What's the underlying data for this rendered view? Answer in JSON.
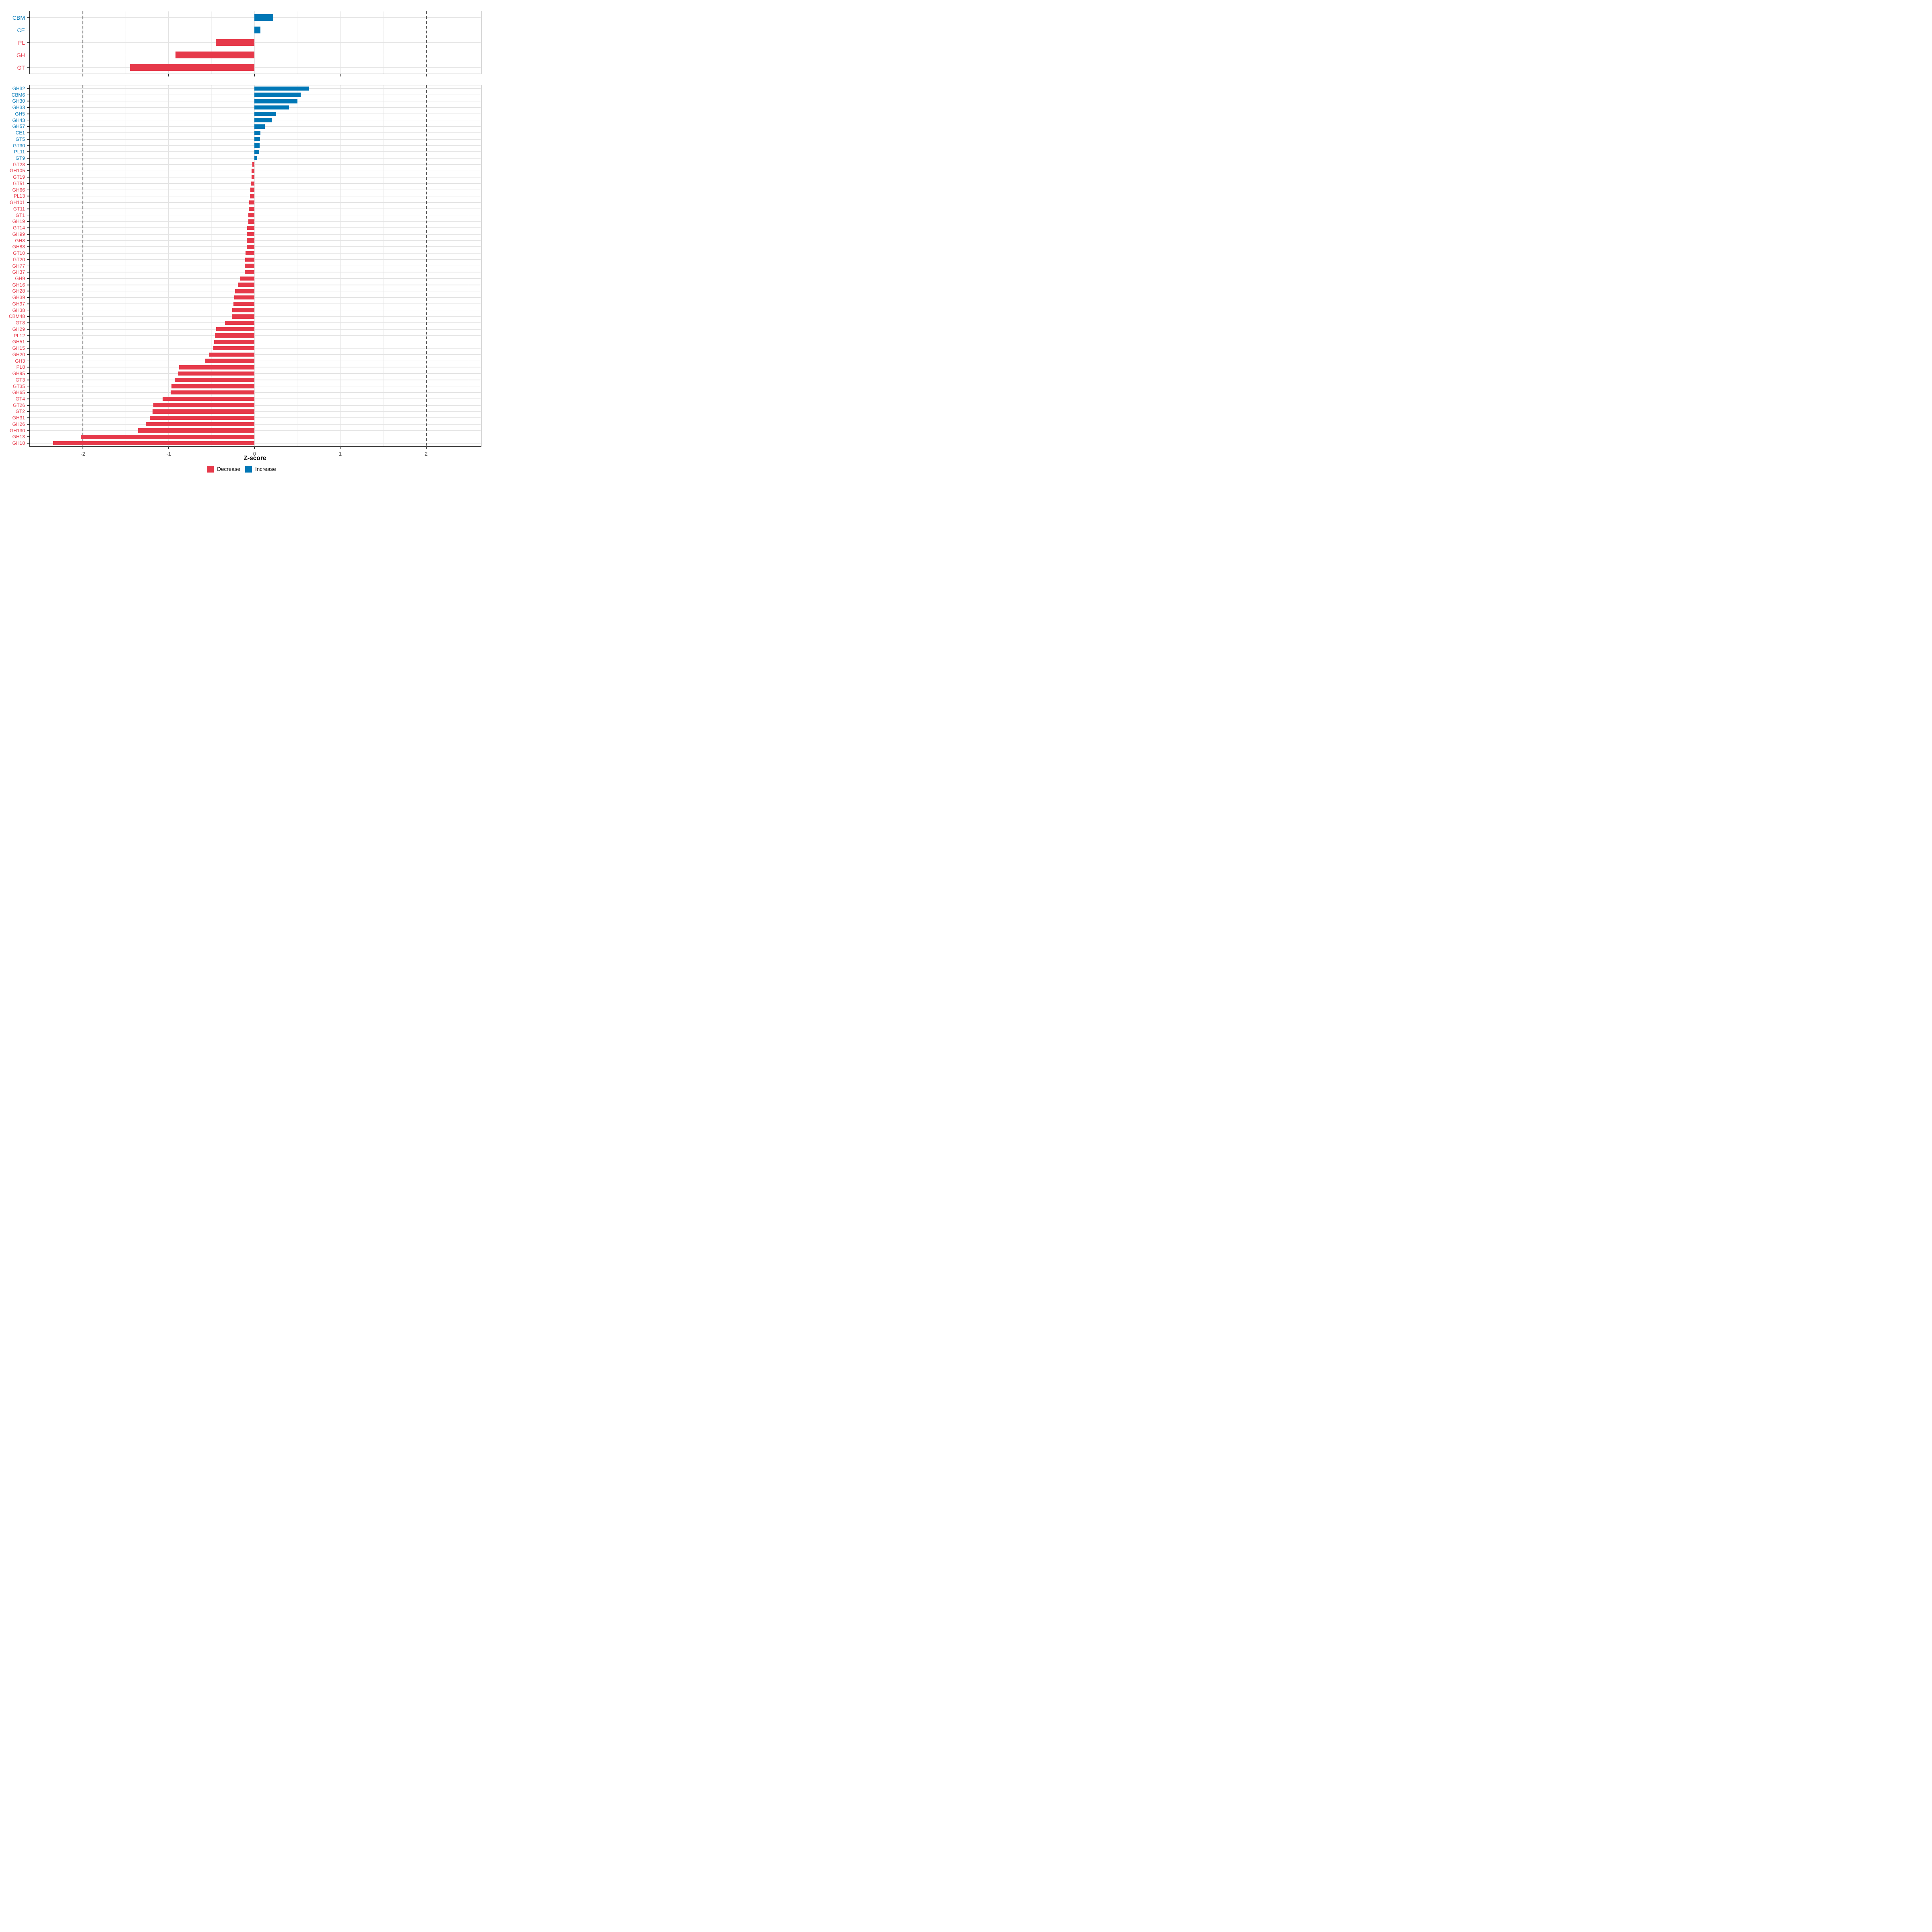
{
  "axis": {
    "label": "Z-score",
    "ticks": [
      -2,
      -1,
      0,
      1,
      2
    ],
    "xlim": [
      -2.62,
      2.64
    ],
    "dashed_lines": [
      -2,
      2
    ],
    "minor_ticks": [
      -2.5,
      -1.5,
      -0.5,
      0.5,
      1.5,
      2.5
    ]
  },
  "colors": {
    "increase": "#0077B6",
    "decrease": "#E6394A",
    "tick_label": "#4d4d4d",
    "grid": "#e4e4e4",
    "dashed_line": "#3d3d3d",
    "panel_border": "#222222",
    "background": "#ffffff"
  },
  "legend": {
    "items": [
      {
        "label": "Decrease",
        "color_key": "decrease"
      },
      {
        "label": "Increase",
        "color_key": "increase"
      }
    ]
  },
  "chart_data": [
    {
      "type": "bar",
      "orientation": "horizontal",
      "panel": "enzyme-classes",
      "xlabel": "Z-score",
      "xlim": [
        -2.62,
        2.64
      ],
      "grid": true,
      "categories": [
        "CBM",
        "CE",
        "PL",
        "GH",
        "GT"
      ],
      "values": [
        0.22,
        0.07,
        -0.45,
        -0.92,
        -1.45
      ]
    },
    {
      "type": "bar",
      "orientation": "horizontal",
      "panel": "cazy-families",
      "xlabel": "Z-score",
      "xlim": [
        -2.62,
        2.64
      ],
      "grid": true,
      "categories": [
        "GH32",
        "CBM6",
        "GH30",
        "GH33",
        "GH5",
        "GH43",
        "GH57",
        "CE1",
        "GT5",
        "GT30",
        "PL11",
        "GT9",
        "GT28",
        "GH105",
        "GT19",
        "GT51",
        "GH66",
        "PL13",
        "GH101",
        "GT11",
        "GT1",
        "GH19",
        "GT14",
        "GH99",
        "GH8",
        "GH88",
        "GT10",
        "GT20",
        "GH77",
        "GH37",
        "GH9",
        "GH16",
        "GH28",
        "GH39",
        "GH97",
        "GH38",
        "CBM48",
        "GT8",
        "GH29",
        "PL12",
        "GH51",
        "GH15",
        "GH20",
        "GH3",
        "PL8",
        "GH95",
        "GT3",
        "GT35",
        "GH65",
        "GT4",
        "GT26",
        "GT2",
        "GH31",
        "GH26",
        "GH130",
        "GH13",
        "GH18"
      ],
      "values": [
        0.63,
        0.54,
        0.5,
        0.4,
        0.25,
        0.2,
        0.12,
        0.07,
        0.065,
        0.06,
        0.055,
        0.03,
        -0.025,
        -0.033,
        -0.036,
        -0.042,
        -0.047,
        -0.053,
        -0.064,
        -0.069,
        -0.071,
        -0.073,
        -0.088,
        -0.089,
        -0.09,
        -0.092,
        -0.103,
        -0.11,
        -0.112,
        -0.115,
        -0.165,
        -0.195,
        -0.225,
        -0.235,
        -0.248,
        -0.258,
        -0.263,
        -0.343,
        -0.446,
        -0.46,
        -0.47,
        -0.48,
        -0.53,
        -0.58,
        -0.88,
        -0.89,
        -0.93,
        -0.97,
        -0.98,
        -1.07,
        -1.18,
        -1.19,
        -1.22,
        -1.27,
        -1.36,
        -2.02,
        -2.35
      ]
    }
  ]
}
